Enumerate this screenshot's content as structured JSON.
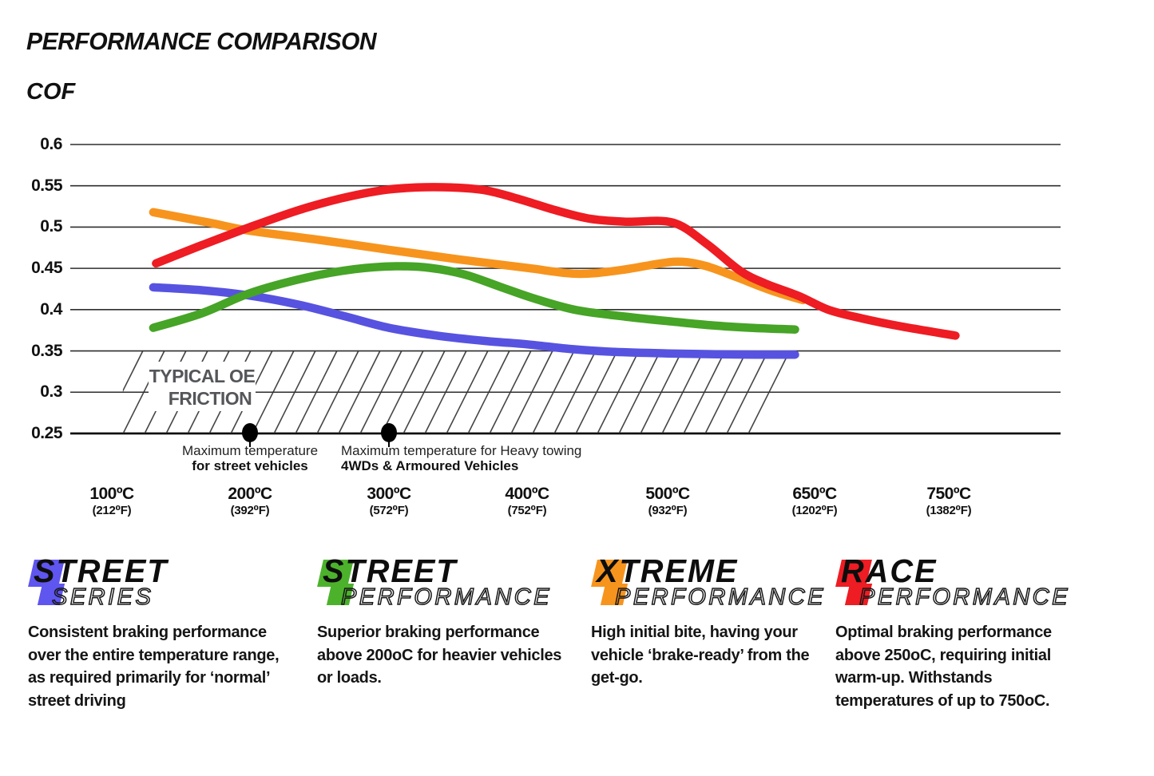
{
  "title": "PERFORMANCE COMPARISON",
  "chart_data": {
    "type": "line",
    "title": "PERFORMANCE COMPARISON",
    "ylabel": "COF",
    "ylim": [
      0.25,
      0.6
    ],
    "grid": "horizontal",
    "y_ticks": [
      "0.6",
      "0.55",
      "0.5",
      "0.45",
      "0.4",
      "0.35",
      "0.3",
      "0.25"
    ],
    "x_categories": [
      {
        "temp_c": 100,
        "label_c": "100ºC",
        "label_f": "(212⁰F)"
      },
      {
        "temp_c": 200,
        "label_c": "200ºC",
        "label_f": "(392⁰F)"
      },
      {
        "temp_c": 300,
        "label_c": "300ºC",
        "label_f": "(572⁰F)"
      },
      {
        "temp_c": 400,
        "label_c": "400ºC",
        "label_f": "(752⁰F)"
      },
      {
        "temp_c": 500,
        "label_c": "500ºC",
        "label_f": "(932⁰F)"
      },
      {
        "temp_c": 650,
        "label_c": "650ºC",
        "label_f": "(1202⁰F)"
      },
      {
        "temp_c": 750,
        "label_c": "750ºC",
        "label_f": "(1382⁰F)"
      }
    ],
    "series": [
      {
        "name": "Street Series",
        "color": "#5753e0",
        "points": [
          [
            130,
            0.427
          ],
          [
            165,
            0.4235
          ],
          [
            200,
            0.417
          ],
          [
            235,
            0.406
          ],
          [
            268,
            0.392
          ],
          [
            300,
            0.378
          ],
          [
            335,
            0.3685
          ],
          [
            370,
            0.362
          ],
          [
            400,
            0.358
          ],
          [
            430,
            0.3525
          ],
          [
            460,
            0.349
          ],
          [
            500,
            0.347
          ],
          [
            550,
            0.346
          ],
          [
            590,
            0.3455
          ],
          [
            630,
            0.3455
          ]
        ]
      },
      {
        "name": "Street Performance",
        "color": "#46a426",
        "points": [
          [
            130,
            0.378
          ],
          [
            165,
            0.3955
          ],
          [
            200,
            0.42
          ],
          [
            240,
            0.4385
          ],
          [
            275,
            0.449
          ],
          [
            305,
            0.4525
          ],
          [
            330,
            0.4505
          ],
          [
            355,
            0.4425
          ],
          [
            380,
            0.428
          ],
          [
            405,
            0.4135
          ],
          [
            435,
            0.3995
          ],
          [
            470,
            0.3915
          ],
          [
            505,
            0.3855
          ],
          [
            545,
            0.381
          ],
          [
            585,
            0.378
          ],
          [
            630,
            0.376
          ]
        ]
      },
      {
        "name": "Xtreme Performance",
        "color": "#f7941e",
        "points": [
          [
            130,
            0.518
          ],
          [
            170,
            0.5055
          ],
          [
            200,
            0.4955
          ],
          [
            250,
            0.4845
          ],
          [
            300,
            0.4725
          ],
          [
            350,
            0.461
          ],
          [
            400,
            0.4505
          ],
          [
            435,
            0.4435
          ],
          [
            465,
            0.4475
          ],
          [
            495,
            0.456
          ],
          [
            515,
            0.458
          ],
          [
            540,
            0.4525
          ],
          [
            570,
            0.4395
          ],
          [
            605,
            0.4235
          ],
          [
            638,
            0.4115
          ]
        ]
      },
      {
        "name": "Race Performance",
        "color": "#ee1c23",
        "points": [
          [
            132,
            0.456
          ],
          [
            165,
            0.478
          ],
          [
            200,
            0.5
          ],
          [
            235,
            0.5205
          ],
          [
            265,
            0.5345
          ],
          [
            295,
            0.5445
          ],
          [
            320,
            0.548
          ],
          [
            345,
            0.548
          ],
          [
            370,
            0.5445
          ],
          [
            395,
            0.5335
          ],
          [
            420,
            0.5205
          ],
          [
            445,
            0.51
          ],
          [
            470,
            0.5065
          ],
          [
            505,
            0.5055
          ],
          [
            540,
            0.4795
          ],
          [
            574,
            0.447
          ],
          [
            600,
            0.4315
          ],
          [
            634,
            0.4165
          ],
          [
            660,
            0.4
          ],
          [
            685,
            0.3895
          ],
          [
            715,
            0.3795
          ],
          [
            755,
            0.3685
          ]
        ]
      }
    ],
    "oe_band": {
      "label_lines": [
        "TYPICAL OE",
        "FRICTION"
      ],
      "label_color": "#54565a",
      "cof_from": 0.25,
      "cof_to": 0.35,
      "temp_from": 108,
      "temp_to": 633
    },
    "annotations": [
      {
        "temp_c": 200,
        "align": "center",
        "lines": [
          "Maximum temperature",
          "for street vehicles"
        ]
      },
      {
        "temp_c": 300,
        "align": "left",
        "lines": [
          "Maximum temperature for Heavy towing",
          "4WDs & Armoured Vehicles"
        ]
      }
    ]
  },
  "legend": [
    {
      "word1": "STREET",
      "word2": "SERIES",
      "color": "#5f55ef",
      "description": "Consistent braking performance over the entire temperature range, as required primarily for ‘normal’ street driving"
    },
    {
      "word1": "STREET",
      "word2": "PERFORMANCE",
      "color": "#4cb22c",
      "description": "Superior braking performance above 200oC for heavier vehicles or loads."
    },
    {
      "word1": "XTREME",
      "word2": "PERFORMANCE",
      "color": "#f7941e",
      "description": "High initial bite, having your vehicle ‘brake-ready’ from the get-go."
    },
    {
      "word1": "RACE",
      "word2": "PERFORMANCE",
      "color": "#ee1c23",
      "description": "Optimal braking performance above 250oC, requiring initial warm-up. Withstands temperatures of up to 750oC."
    }
  ]
}
